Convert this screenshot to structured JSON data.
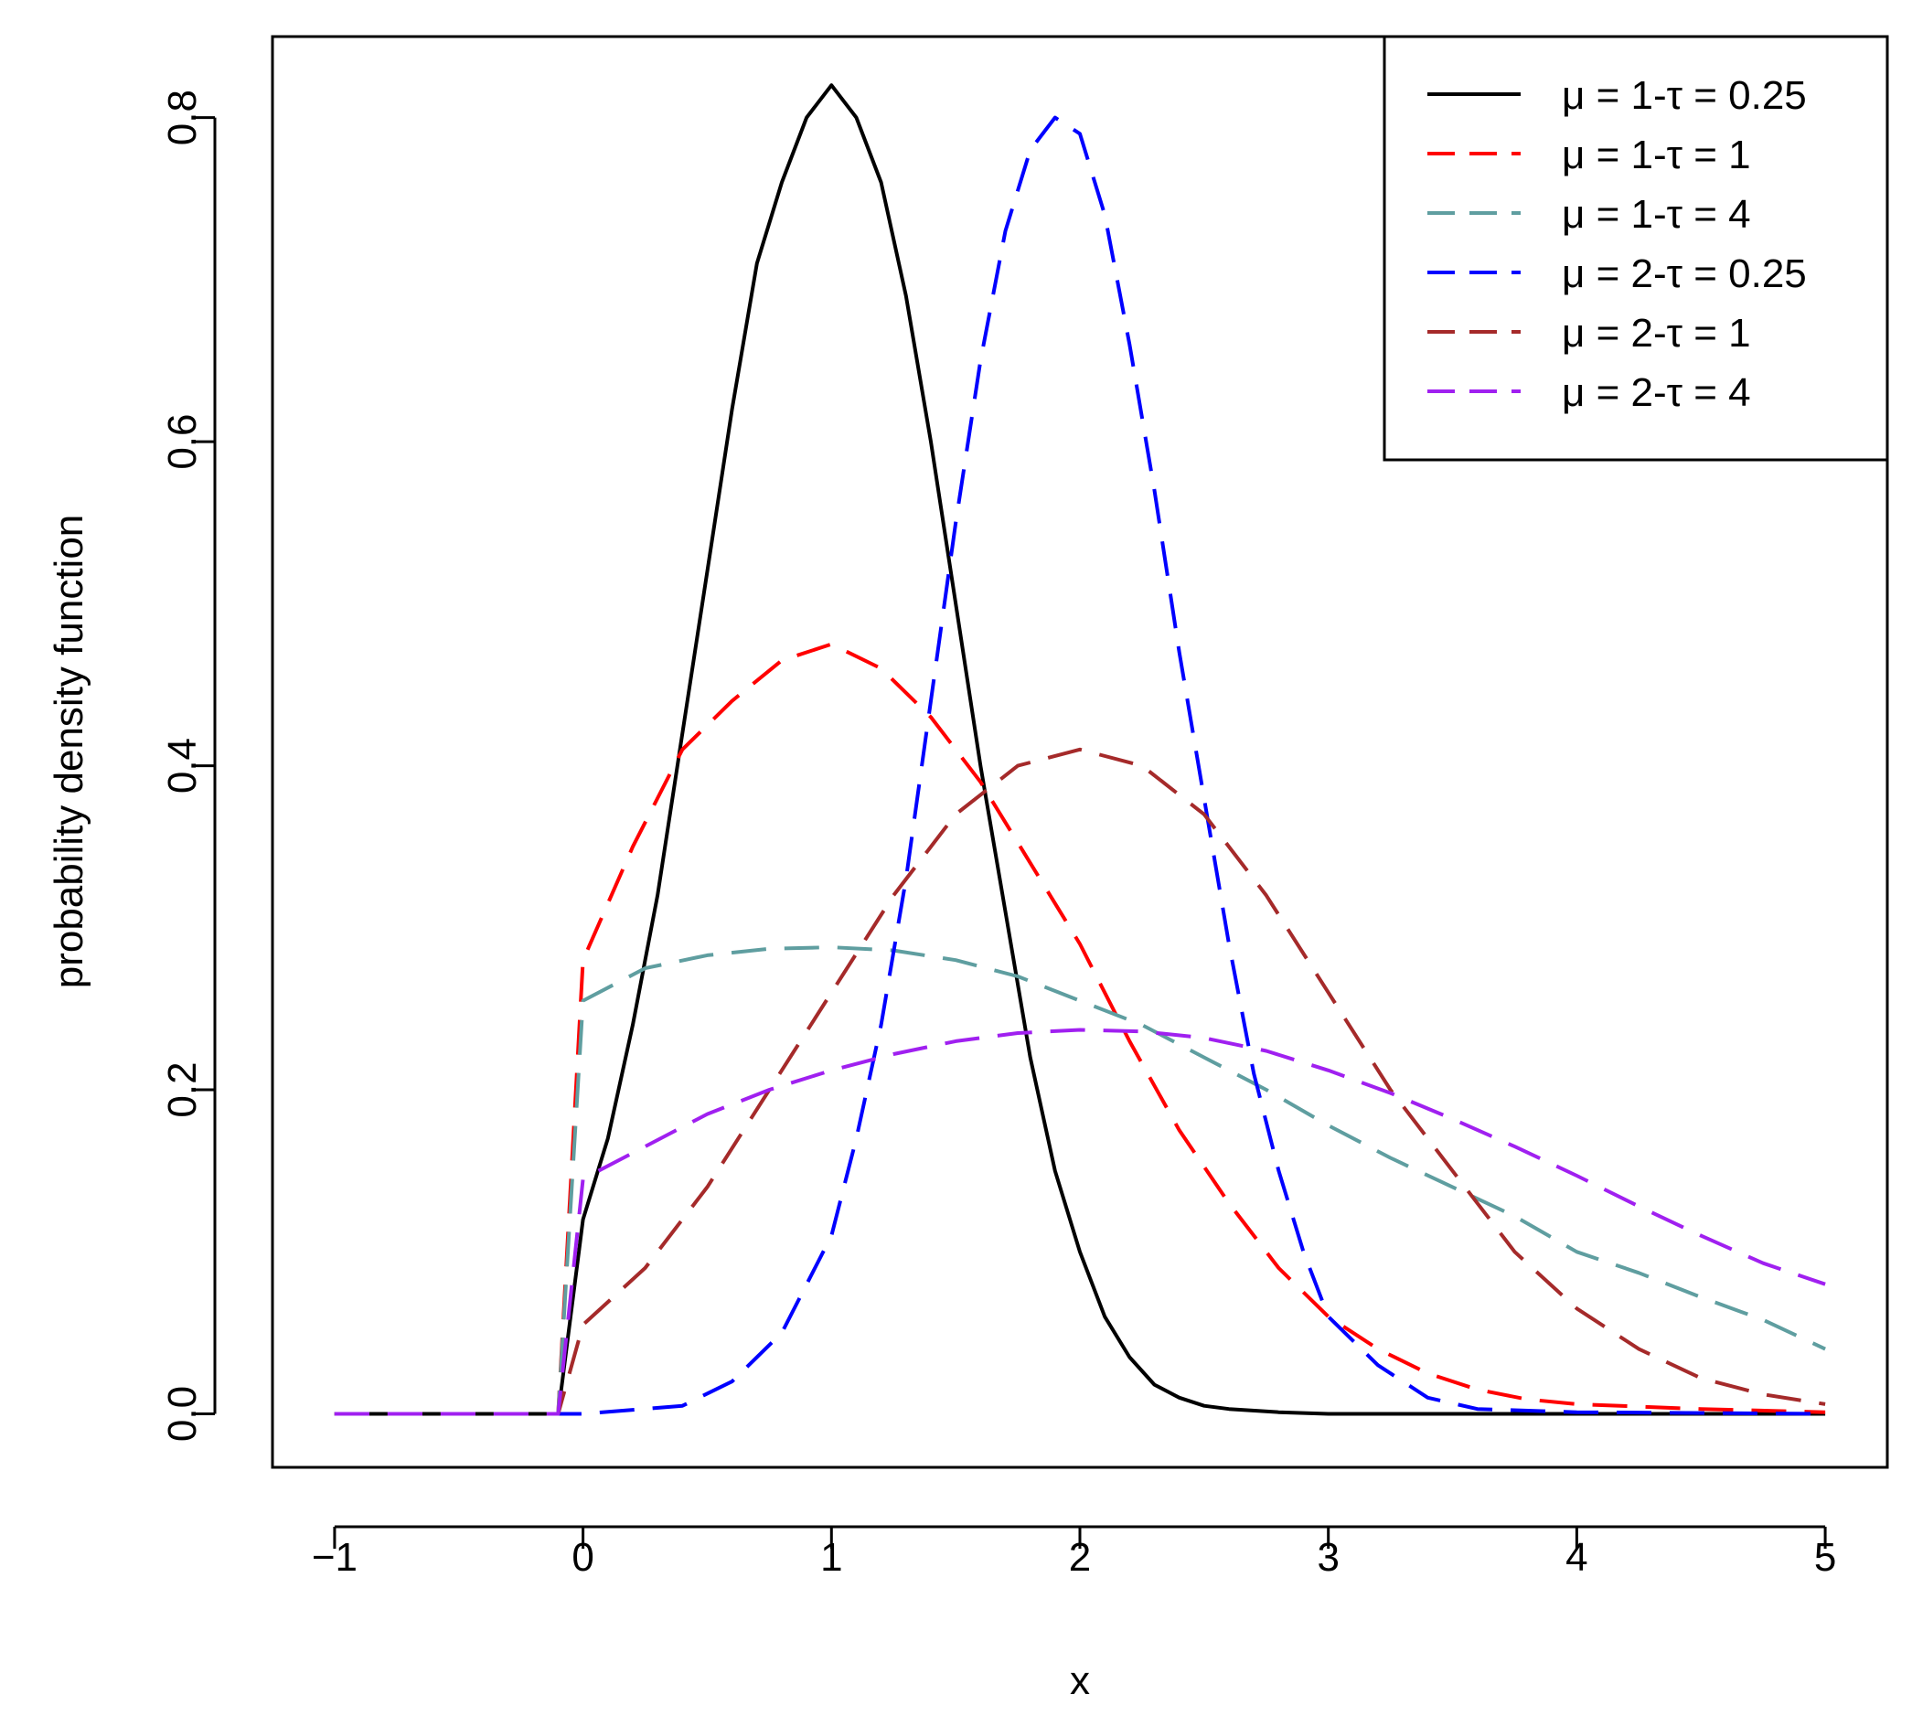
{
  "chart_data": {
    "type": "line",
    "title": "",
    "xlabel": "x",
    "ylabel": "probability density function",
    "xlim": [
      -1.25,
      5.25
    ],
    "ylim": [
      -0.033,
      0.85
    ],
    "x_ticks": [
      -1,
      0,
      1,
      2,
      3,
      4,
      5
    ],
    "x_tick_labels": [
      "−1",
      "0",
      "1",
      "2",
      "3",
      "4",
      "5"
    ],
    "y_ticks": [
      0.0,
      0.2,
      0.4,
      0.6,
      0.8
    ],
    "y_tick_labels": [
      "0.0",
      "0.2",
      "0.4",
      "0.6",
      "0.8"
    ],
    "grid": false,
    "legend_position": "top-right",
    "series": [
      {
        "name": "μ = 1-τ = 0.25",
        "color": "#000000",
        "dash": "solid",
        "x": [
          -1,
          -0.1,
          0,
          0.1,
          0.2,
          0.3,
          0.4,
          0.5,
          0.6,
          0.7,
          0.8,
          0.9,
          1.0,
          1.1,
          1.2,
          1.3,
          1.4,
          1.5,
          1.6,
          1.7,
          1.8,
          1.9,
          2.0,
          2.1,
          2.2,
          2.3,
          2.4,
          2.5,
          2.6,
          2.8,
          3.0,
          4.0,
          5.0
        ],
        "y": [
          0,
          0,
          0.12,
          0.17,
          0.24,
          0.32,
          0.42,
          0.52,
          0.62,
          0.71,
          0.76,
          0.8,
          0.82,
          0.8,
          0.76,
          0.69,
          0.6,
          0.5,
          0.4,
          0.31,
          0.22,
          0.15,
          0.1,
          0.06,
          0.035,
          0.018,
          0.01,
          0.005,
          0.003,
          0.001,
          0,
          0,
          0
        ]
      },
      {
        "name": "μ = 1-τ = 1",
        "color": "#ff0000",
        "dash": "dashed",
        "x": [
          -1,
          -0.1,
          0,
          0.2,
          0.4,
          0.6,
          0.8,
          1.0,
          1.2,
          1.4,
          1.6,
          1.8,
          2.0,
          2.2,
          2.4,
          2.6,
          2.8,
          3.0,
          3.2,
          3.4,
          3.6,
          3.8,
          4.0,
          4.5,
          5.0
        ],
        "y": [
          0,
          0,
          0.28,
          0.35,
          0.41,
          0.44,
          0.465,
          0.475,
          0.46,
          0.43,
          0.39,
          0.34,
          0.29,
          0.23,
          0.175,
          0.13,
          0.09,
          0.06,
          0.04,
          0.025,
          0.015,
          0.009,
          0.006,
          0.003,
          0.001
        ]
      },
      {
        "name": "μ = 1-τ = 4",
        "color": "#5f9ea0",
        "dash": "dashed",
        "x": [
          -1,
          -0.1,
          0,
          0.25,
          0.5,
          0.75,
          1.0,
          1.25,
          1.5,
          1.75,
          2.0,
          2.25,
          2.5,
          2.75,
          3.0,
          3.25,
          3.5,
          3.75,
          4.0,
          4.25,
          4.5,
          4.75,
          5.0
        ],
        "y": [
          0,
          0,
          0.255,
          0.275,
          0.283,
          0.287,
          0.288,
          0.286,
          0.28,
          0.27,
          0.255,
          0.24,
          0.22,
          0.2,
          0.178,
          0.158,
          0.14,
          0.122,
          0.1,
          0.087,
          0.072,
          0.058,
          0.04
        ]
      },
      {
        "name": "μ = 2-τ = 0.25",
        "color": "#0000ff",
        "dash": "dashed",
        "x": [
          -1,
          0,
          0.4,
          0.6,
          0.8,
          1.0,
          1.1,
          1.2,
          1.3,
          1.4,
          1.5,
          1.6,
          1.7,
          1.8,
          1.9,
          2.0,
          2.1,
          2.2,
          2.3,
          2.4,
          2.5,
          2.6,
          2.7,
          2.8,
          2.9,
          3.0,
          3.2,
          3.4,
          3.6,
          4.0,
          5.0
        ],
        "y": [
          0,
          0,
          0.005,
          0.02,
          0.05,
          0.11,
          0.17,
          0.24,
          0.33,
          0.44,
          0.55,
          0.65,
          0.73,
          0.78,
          0.8,
          0.79,
          0.74,
          0.66,
          0.57,
          0.47,
          0.38,
          0.29,
          0.21,
          0.15,
          0.1,
          0.06,
          0.03,
          0.01,
          0.003,
          0.001,
          0
        ]
      },
      {
        "name": "μ = 2-τ = 1",
        "color": "#a52a2a",
        "dash": "dashed",
        "x": [
          -1,
          -0.1,
          0,
          0.25,
          0.5,
          0.75,
          1.0,
          1.25,
          1.5,
          1.75,
          2.0,
          2.25,
          2.5,
          2.75,
          3.0,
          3.25,
          3.5,
          3.75,
          4.0,
          4.25,
          4.5,
          4.75,
          5.0
        ],
        "y": [
          0,
          0,
          0.055,
          0.09,
          0.14,
          0.2,
          0.26,
          0.32,
          0.37,
          0.4,
          0.41,
          0.4,
          0.37,
          0.32,
          0.26,
          0.2,
          0.15,
          0.1,
          0.065,
          0.04,
          0.022,
          0.012,
          0.006
        ]
      },
      {
        "name": "μ = 2-τ = 4",
        "color": "#a020f0",
        "dash": "dashed",
        "x": [
          -1,
          -0.1,
          0,
          0.25,
          0.5,
          0.75,
          1.0,
          1.25,
          1.5,
          1.75,
          2.0,
          2.25,
          2.5,
          2.75,
          3.0,
          3.25,
          3.5,
          3.75,
          4.0,
          4.25,
          4.5,
          4.75,
          5.0
        ],
        "y": [
          0,
          0,
          0.145,
          0.165,
          0.185,
          0.2,
          0.212,
          0.222,
          0.23,
          0.235,
          0.237,
          0.236,
          0.232,
          0.224,
          0.212,
          0.198,
          0.182,
          0.165,
          0.147,
          0.128,
          0.11,
          0.093,
          0.08
        ]
      }
    ]
  }
}
